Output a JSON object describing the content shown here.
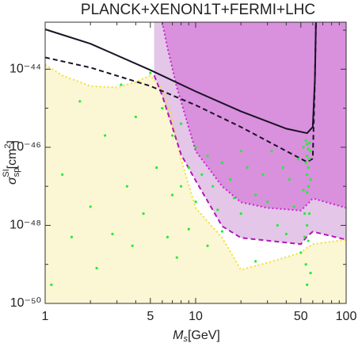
{
  "chart_data": {
    "type": "line",
    "title": "PLANCK+XENON1T+FERMI+LHC",
    "xlabel": [
      "M",
      "s",
      "[GeV]"
    ],
    "ylabel": [
      "σ",
      "sp",
      "SI",
      "[cm",
      "2",
      "]"
    ],
    "xscale": "log",
    "yscale": "log",
    "xlim": [
      1,
      100
    ],
    "ylim": [
      1e-50,
      1.6e-43
    ],
    "xticks": [
      1,
      5,
      10,
      50,
      100
    ],
    "xminor": [
      2,
      3,
      4,
      6,
      7,
      8,
      9,
      20,
      30,
      40,
      60,
      70,
      80,
      90
    ],
    "yticks": [
      {
        "value": 1e-50,
        "label": "10⁻⁵⁰"
      },
      {
        "value": 1e-48,
        "label": "10⁻⁴⁸"
      },
      {
        "value": 1e-46,
        "label": "10⁻⁴⁶"
      },
      {
        "value": 1e-44,
        "label": "10⁻⁴⁴"
      }
    ],
    "yminor": [
      1e-49,
      1e-47,
      1e-45,
      1e-43
    ],
    "series": [
      {
        "type": "area",
        "fill": "below",
        "style": "dotted",
        "color": "#f2df3a",
        "fill_color": "#f9f3c4",
        "x": [
          1,
          1.3,
          2,
          3,
          4,
          5,
          6,
          7,
          8,
          10,
          15,
          20,
          30,
          50,
          55,
          60,
          100
        ],
        "values": [
          1.3e-44,
          6.9e-45,
          3.7e-45,
          3.4e-45,
          4.7e-45,
          6.9e-45,
          3.1e-45,
          5.3e-46,
          5e-47,
          2.8e-48,
          4.8e-49,
          7.3e-50,
          1.1e-49,
          2e-49,
          2.7e-49,
          3.3e-49,
          4.3e-49
        ]
      },
      {
        "type": "area",
        "fill": "above",
        "style": "dashed",
        "color": "#b316b8",
        "fill_color": "#d9b3e0",
        "x": [
          5.3,
          6,
          7,
          8,
          10,
          15,
          20,
          50,
          55,
          60,
          100
        ],
        "values": [
          6.9e-45,
          2.1e-45,
          3.3e-46,
          6.5e-47,
          1.4e-47,
          9.5e-49,
          4.8e-49,
          3.3e-49,
          5.2e-49,
          6.9e-49,
          4.3e-49
        ]
      },
      {
        "type": "area",
        "fill": "above",
        "style": "dotted",
        "color": "#cc22cc",
        "fill_color": "#d67ed9",
        "x": [
          6,
          6.5,
          7.5,
          10,
          15,
          20,
          30,
          50,
          55,
          60,
          100
        ],
        "values": [
          1.6e-43,
          3.5e-44,
          3.4e-45,
          8e-47,
          1e-47,
          3.9e-48,
          2.8e-48,
          2.4e-48,
          3.4e-48,
          4.9e-48,
          2.8e-48
        ]
      },
      {
        "type": "line",
        "style": "solid",
        "color": "#1a1226",
        "x": [
          1,
          2,
          5,
          10,
          20,
          40,
          55,
          60,
          62,
          63
        ],
        "values": [
          1.05e-43,
          4.5e-44,
          9.5e-45,
          2.7e-45,
          8.3e-46,
          3e-46,
          2.3e-46,
          3.3e-46,
          5.5e-45,
          1.6e-43
        ]
      },
      {
        "type": "line",
        "style": "dashed",
        "color": "#1a1226",
        "x": [
          1,
          2,
          5,
          10,
          20,
          40,
          55,
          60,
          62,
          63
        ],
        "values": [
          2e-44,
          1.1e-44,
          3.7e-45,
          1.2e-45,
          3.3e-46,
          8e-47,
          4.2e-47,
          5.1e-47,
          5.5e-45,
          1.6e-43
        ]
      },
      {
        "type": "scatter",
        "color": "#22ee33",
        "x": [
          1.1,
          1.3,
          1.5,
          1.7,
          2,
          2.2,
          2.5,
          2.8,
          3.2,
          3.5,
          3.8,
          4,
          4.5,
          5,
          5.5,
          6,
          6.5,
          7,
          7,
          7.5,
          8,
          8,
          9,
          9,
          10,
          10,
          11,
          12,
          12,
          13,
          14,
          15,
          15,
          17,
          18,
          20,
          20,
          22,
          25,
          25,
          28,
          30,
          32,
          35,
          38,
          40,
          42,
          45,
          48,
          50,
          52,
          52,
          53,
          53,
          54,
          54,
          54,
          55,
          55,
          55,
          55,
          55,
          55,
          56,
          56,
          56,
          56,
          57,
          57,
          57,
          58,
          58,
          58
        ],
        "values": [
          3e-50,
          2e-47,
          5e-49,
          1.5e-45,
          3e-48,
          8e-50,
          2e-46,
          6e-49,
          4e-45,
          1e-47,
          3e-49,
          6e-46,
          2e-48,
          8e-45,
          3e-47,
          1e-45,
          5e-49,
          2e-46,
          6e-48,
          1.5e-49,
          4e-46,
          1e-47,
          3e-47,
          8e-49,
          1e-46,
          4e-48,
          2e-47,
          6e-47,
          3e-49,
          1e-47,
          2.5e-48,
          4e-47,
          7e-49,
          1.5e-47,
          5e-48,
          8e-47,
          2e-48,
          3e-47,
          6e-48,
          1.2e-49,
          2e-47,
          4e-48,
          8e-47,
          1e-48,
          3e-47,
          6e-49,
          1.5e-47,
          3e-48,
          5e-47,
          2e-49,
          1e-46,
          8e-48,
          2e-48,
          5e-49,
          1.5e-46,
          4e-47,
          1e-49,
          1.2e-46,
          6e-47,
          2e-47,
          7e-48,
          1e-48,
          3e-50,
          9e-47,
          3e-47,
          1e-47,
          4e-49,
          1.3e-46,
          5e-47,
          2e-48,
          8e-47,
          1.5e-47,
          6e-50
        ]
      }
    ]
  }
}
